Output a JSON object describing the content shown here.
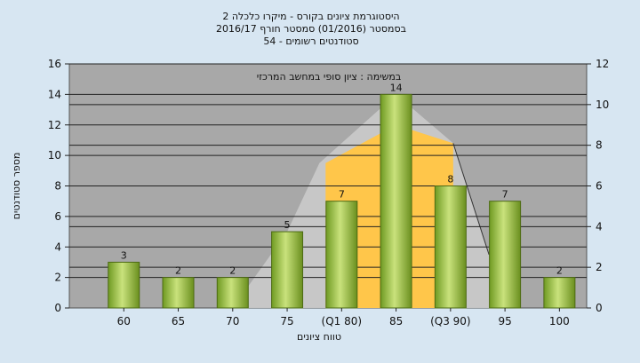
{
  "chart_data": {
    "type": "bar",
    "title_lines": [
      "היסטוגרמת ציונים בקורס - מיקרו כלכלה 2",
      "בסמסטר  (01/2016)  סמסטר חורף 2016/17",
      "סטודנטים רשומים - 54"
    ],
    "subtitle": "במשימה : ציון סופי במחשב המרכזי",
    "xlabel": "טווח ציונים",
    "ylabel": "מספר סטודנטים",
    "categories": [
      "60",
      "65",
      "70",
      "75",
      "(Q1 80)",
      "85",
      "(Q3 90)",
      "95",
      "100"
    ],
    "values": [
      3,
      2,
      2,
      5,
      7,
      14,
      8,
      7,
      2
    ],
    "ylim": [
      0,
      16
    ],
    "yticks": [
      0,
      2,
      4,
      6,
      8,
      10,
      12,
      14,
      16
    ],
    "ylim_right": [
      0,
      12
    ],
    "yticks_right": [
      0,
      2,
      4,
      6,
      8,
      10,
      12
    ],
    "grid": true,
    "colors": {
      "bar": "#8fb63a",
      "band_inner": "#ffc64a",
      "band_outer": "#c8c8c8",
      "plot_bg": "#a8a8a8",
      "page_bg": "#d7e6f2"
    }
  }
}
